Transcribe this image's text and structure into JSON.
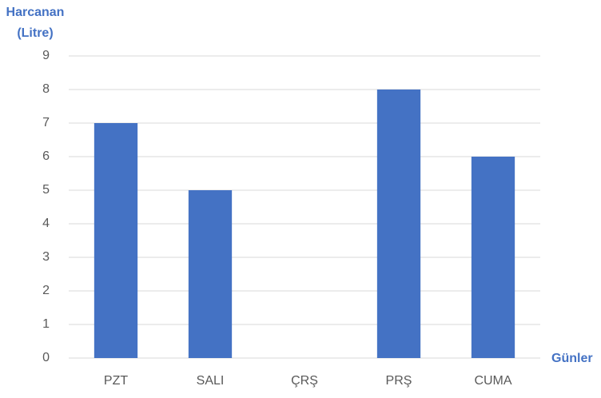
{
  "chart_data": {
    "type": "bar",
    "ylabel": [
      "Harcanan",
      "(Litre)"
    ],
    "xlabel": "Günler",
    "categories": [
      "PZT",
      "SALI",
      "ÇRŞ",
      "PRŞ",
      "CUMA"
    ],
    "values": [
      7,
      5,
      0,
      8,
      6
    ],
    "color": "#4472c4",
    "ylim": [
      0,
      9
    ],
    "yticks": [
      0,
      1,
      2,
      3,
      4,
      5,
      6,
      7,
      8,
      9
    ],
    "grid": true
  }
}
